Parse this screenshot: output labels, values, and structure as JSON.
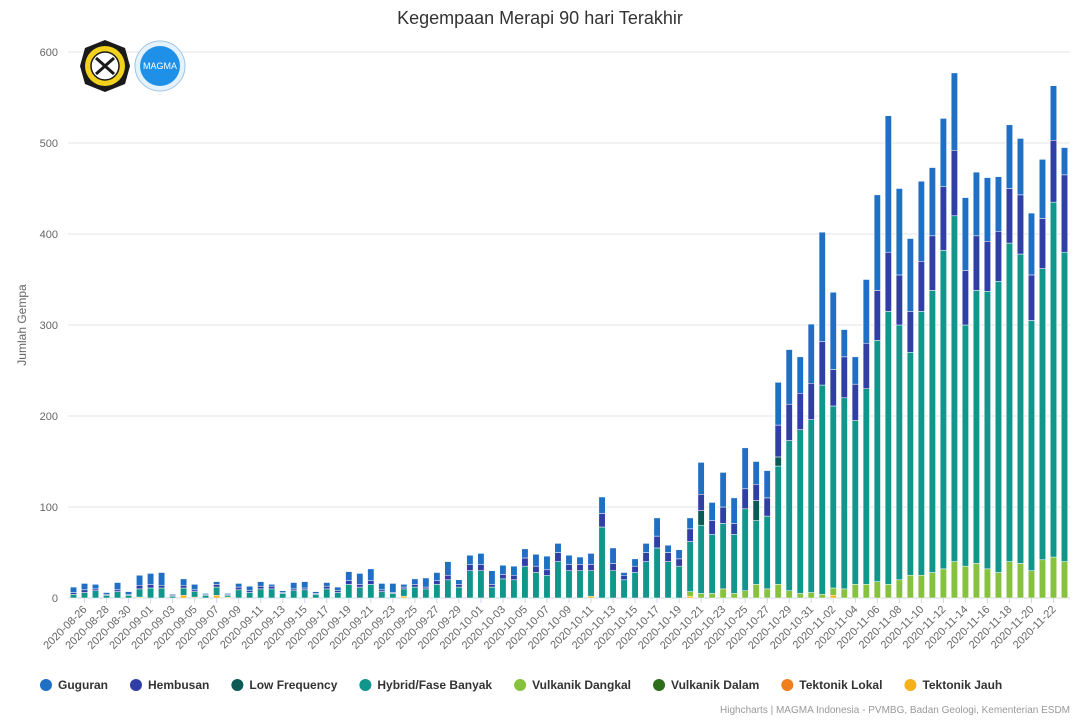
{
  "credits": "Highcharts | MAGMA Indonesia - PVMBG, Badan Geologi, Kementerian ESDM",
  "colors": {
    "Guguran": "#1f6fc4",
    "Hembusan": "#2f3fa6",
    "Low Frequency": "#0b5a56",
    "Hybrid/Fase Banyak": "#10968a",
    "Vulkanik Dangkal": "#86c23e",
    "Vulkanik Dalam": "#2c6e19",
    "Tektonik Lokal": "#f07e1b",
    "Tektonik Jauh": "#f5b21a"
  },
  "logos": {
    "left": "esdm-seal-logo",
    "right_text": "MAGMA"
  },
  "chart_data": {
    "type": "bar",
    "stacked": true,
    "title": "Kegempaan Merapi 90 hari Terakhir",
    "ylabel": "Jumlah Gempa",
    "xlabel": "",
    "ylim": [
      0,
      600
    ],
    "yticks": [
      0,
      100,
      200,
      300,
      400,
      500,
      600
    ],
    "grid": true,
    "legend_position": "bottom",
    "start_date": "2020-08-25",
    "x_tick_labels": [
      "2020-08-26",
      "2020-08-28",
      "2020-08-30",
      "2020-09-01",
      "2020-09-03",
      "2020-09-05",
      "2020-09-07",
      "2020-09-09",
      "2020-09-11",
      "2020-09-13",
      "2020-09-15",
      "2020-09-17",
      "2020-09-19",
      "2020-09-21",
      "2020-09-23",
      "2020-09-25",
      "2020-09-27",
      "2020-09-29",
      "2020-10-01",
      "2020-10-03",
      "2020-10-05",
      "2020-10-07",
      "2020-10-09",
      "2020-10-11",
      "2020-10-13",
      "2020-10-15",
      "2020-10-17",
      "2020-10-19",
      "2020-10-21",
      "2020-10-23",
      "2020-10-25",
      "2020-10-27",
      "2020-10-29",
      "2020-10-31",
      "2020-11-02",
      "2020-11-04",
      "2020-11-06",
      "2020-11-08",
      "2020-11-10",
      "2020-11-12",
      "2020-11-14",
      "2020-11-16",
      "2020-11-18",
      "2020-11-20",
      "2020-11-22"
    ],
    "series": [
      {
        "name": "Tektonik Jauh",
        "values": [
          0,
          0,
          0,
          0,
          0,
          0,
          1,
          0,
          0,
          0,
          3,
          0,
          0,
          3,
          1,
          0,
          0,
          0,
          0,
          0,
          0,
          0,
          0,
          0,
          0,
          0,
          0,
          0,
          0,
          0,
          2,
          0,
          0,
          0,
          0,
          0,
          0,
          0,
          0,
          0,
          0,
          0,
          0,
          0,
          0,
          0,
          0,
          2,
          0,
          0,
          0,
          0,
          0,
          0,
          0,
          0,
          2,
          0,
          0,
          0,
          0,
          0,
          0,
          0,
          0,
          0,
          0,
          0,
          0,
          3,
          0,
          0,
          0,
          0,
          0,
          0,
          0,
          0,
          0,
          0,
          0,
          0,
          0,
          0,
          0,
          0,
          0,
          0,
          0,
          0,
          0
        ]
      },
      {
        "name": "Tektonik Lokal",
        "values": [
          0,
          0,
          0,
          0,
          0,
          0,
          0,
          0,
          0,
          0,
          0,
          1,
          0,
          0,
          0,
          0,
          0,
          0,
          0,
          0,
          0,
          0,
          0,
          0,
          0,
          0,
          0,
          0,
          0,
          0,
          0,
          0,
          0,
          0,
          0,
          0,
          0,
          0,
          0,
          0,
          0,
          0,
          0,
          0,
          0,
          0,
          0,
          0,
          0,
          0,
          0,
          0,
          0,
          0,
          0,
          0,
          0,
          0,
          0,
          0,
          0,
          0,
          0,
          0,
          0,
          0,
          0,
          0,
          0,
          0,
          0,
          0,
          0,
          0,
          0,
          0,
          0,
          0,
          0,
          0,
          0,
          0,
          0,
          0,
          0,
          0,
          0,
          0,
          0,
          0,
          0
        ]
      },
      {
        "name": "Vulkanik Dalam",
        "values": [
          0,
          0,
          0,
          0,
          0,
          0,
          0,
          0,
          0,
          0,
          0,
          0,
          0,
          0,
          0,
          0,
          0,
          0,
          0,
          0,
          0,
          0,
          0,
          0,
          0,
          0,
          0,
          0,
          0,
          0,
          0,
          0,
          0,
          0,
          0,
          0,
          0,
          0,
          0,
          0,
          0,
          0,
          0,
          0,
          0,
          0,
          0,
          0,
          0,
          0,
          0,
          0,
          0,
          0,
          0,
          0,
          0,
          0,
          0,
          0,
          0,
          0,
          0,
          0,
          0,
          0,
          0,
          0,
          0,
          0,
          0,
          0,
          0,
          0,
          0,
          0,
          0,
          0,
          0,
          0,
          0,
          0,
          0,
          0,
          0,
          0,
          0,
          0,
          0,
          0,
          0
        ]
      },
      {
        "name": "Vulkanik Dangkal",
        "values": [
          0,
          0,
          0,
          0,
          0,
          0,
          0,
          0,
          0,
          0,
          0,
          0,
          0,
          0,
          0,
          0,
          0,
          0,
          0,
          0,
          0,
          0,
          0,
          0,
          0,
          0,
          0,
          0,
          0,
          0,
          0,
          0,
          0,
          0,
          0,
          0,
          0,
          0,
          0,
          0,
          0,
          0,
          0,
          0,
          0,
          0,
          0,
          0,
          0,
          0,
          0,
          0,
          0,
          0,
          0,
          0,
          5,
          5,
          5,
          10,
          5,
          8,
          15,
          10,
          15,
          8,
          5,
          6,
          4,
          8,
          10,
          15,
          15,
          18,
          15,
          20,
          25,
          25,
          28,
          32,
          40,
          35,
          38,
          32,
          28,
          40,
          38,
          30,
          42,
          45,
          40
        ]
      },
      {
        "name": "Hybrid/Fase Banyak",
        "values": [
          4,
          6,
          8,
          3,
          7,
          3,
          9,
          11,
          11,
          2,
          8,
          6,
          3,
          9,
          2,
          9,
          6,
          10,
          10,
          5,
          8,
          9,
          4,
          10,
          6,
          15,
          12,
          15,
          7,
          5,
          8,
          12,
          10,
          15,
          20,
          12,
          30,
          30,
          12,
          21,
          20,
          35,
          28,
          25,
          40,
          30,
          30,
          28,
          78,
          30,
          20,
          28,
          40,
          55,
          40,
          35,
          55,
          75,
          65,
          72,
          65,
          90,
          70,
          80,
          130,
          165,
          180,
          190,
          230,
          200,
          210,
          180,
          215,
          265,
          300,
          280,
          245,
          290,
          310,
          350,
          380,
          265,
          300,
          305,
          320,
          350,
          340,
          275,
          320,
          390,
          340
        ]
      },
      {
        "name": "Low Frequency",
        "values": [
          0,
          0,
          0,
          0,
          0,
          0,
          0,
          0,
          0,
          0,
          0,
          0,
          0,
          0,
          0,
          0,
          0,
          0,
          0,
          0,
          0,
          0,
          0,
          0,
          0,
          0,
          0,
          0,
          0,
          0,
          0,
          0,
          0,
          0,
          0,
          0,
          0,
          0,
          0,
          0,
          0,
          0,
          0,
          0,
          0,
          0,
          0,
          0,
          0,
          0,
          0,
          0,
          0,
          0,
          0,
          0,
          0,
          16,
          0,
          0,
          0,
          0,
          22,
          0,
          10,
          0,
          0,
          0,
          0,
          0,
          0,
          0,
          0,
          0,
          0,
          0,
          0,
          0,
          0,
          0,
          0,
          0,
          0,
          0,
          0,
          0,
          0,
          0,
          0,
          0,
          0
        ]
      },
      {
        "name": "Hembusan",
        "values": [
          2,
          3,
          2,
          1,
          2,
          1,
          4,
          4,
          3,
          1,
          3,
          2,
          1,
          3,
          1,
          3,
          2,
          3,
          3,
          1,
          2,
          2,
          1,
          3,
          2,
          4,
          3,
          4,
          2,
          1,
          2,
          3,
          2,
          4,
          5,
          3,
          7,
          7,
          3,
          5,
          5,
          9,
          7,
          6,
          10,
          7,
          7,
          7,
          15,
          8,
          5,
          7,
          10,
          13,
          10,
          8,
          14,
          18,
          15,
          18,
          12,
          22,
          18,
          20,
          35,
          40,
          40,
          40,
          48,
          40,
          45,
          40,
          50,
          55,
          65,
          55,
          45,
          55,
          60,
          70,
          72,
          60,
          60,
          55,
          55,
          60,
          65,
          50,
          55,
          68,
          85
        ]
      },
      {
        "name": "Guguran",
        "values": [
          6,
          7,
          5,
          2,
          8,
          3,
          11,
          12,
          14,
          1,
          7,
          6,
          1,
          3,
          1,
          4,
          5,
          5,
          2,
          2,
          7,
          7,
          2,
          4,
          4,
          10,
          12,
          13,
          7,
          10,
          3,
          6,
          10,
          9,
          15,
          5,
          10,
          12,
          15,
          10,
          10,
          10,
          13,
          15,
          10,
          10,
          8,
          12,
          18,
          17,
          3,
          8,
          10,
          20,
          8,
          10,
          12,
          35,
          20,
          38,
          28,
          45,
          25,
          30,
          47,
          60,
          40,
          65,
          120,
          85,
          30,
          30,
          70,
          105,
          150,
          95,
          80,
          88,
          75,
          75,
          85,
          80,
          70,
          70,
          60,
          70,
          62,
          68,
          65,
          60,
          30
        ]
      }
    ]
  }
}
